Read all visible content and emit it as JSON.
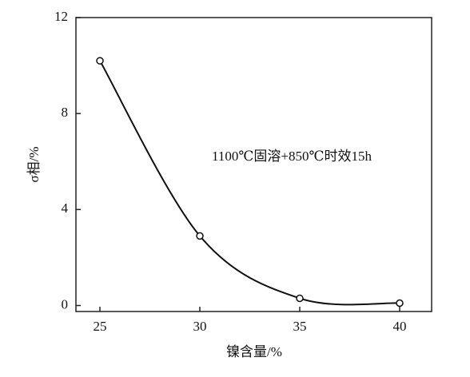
{
  "chart_data": {
    "type": "line",
    "x_label": "镍含量/%",
    "y_label": "σ相/%",
    "annotation": "1100℃固溶+850℃时效15h",
    "x": [
      25,
      30,
      35,
      40
    ],
    "series": [
      {
        "color": "#111111",
        "values": [
          10.2,
          2.9,
          0.3,
          0.1
        ]
      }
    ],
    "xlim": [
      23.8,
      41.6
    ],
    "xticks": [
      25,
      30,
      35,
      40
    ],
    "ylim": [
      -0.25,
      12
    ],
    "yticks": [
      0,
      4,
      8,
      12
    ],
    "grid": false
  }
}
